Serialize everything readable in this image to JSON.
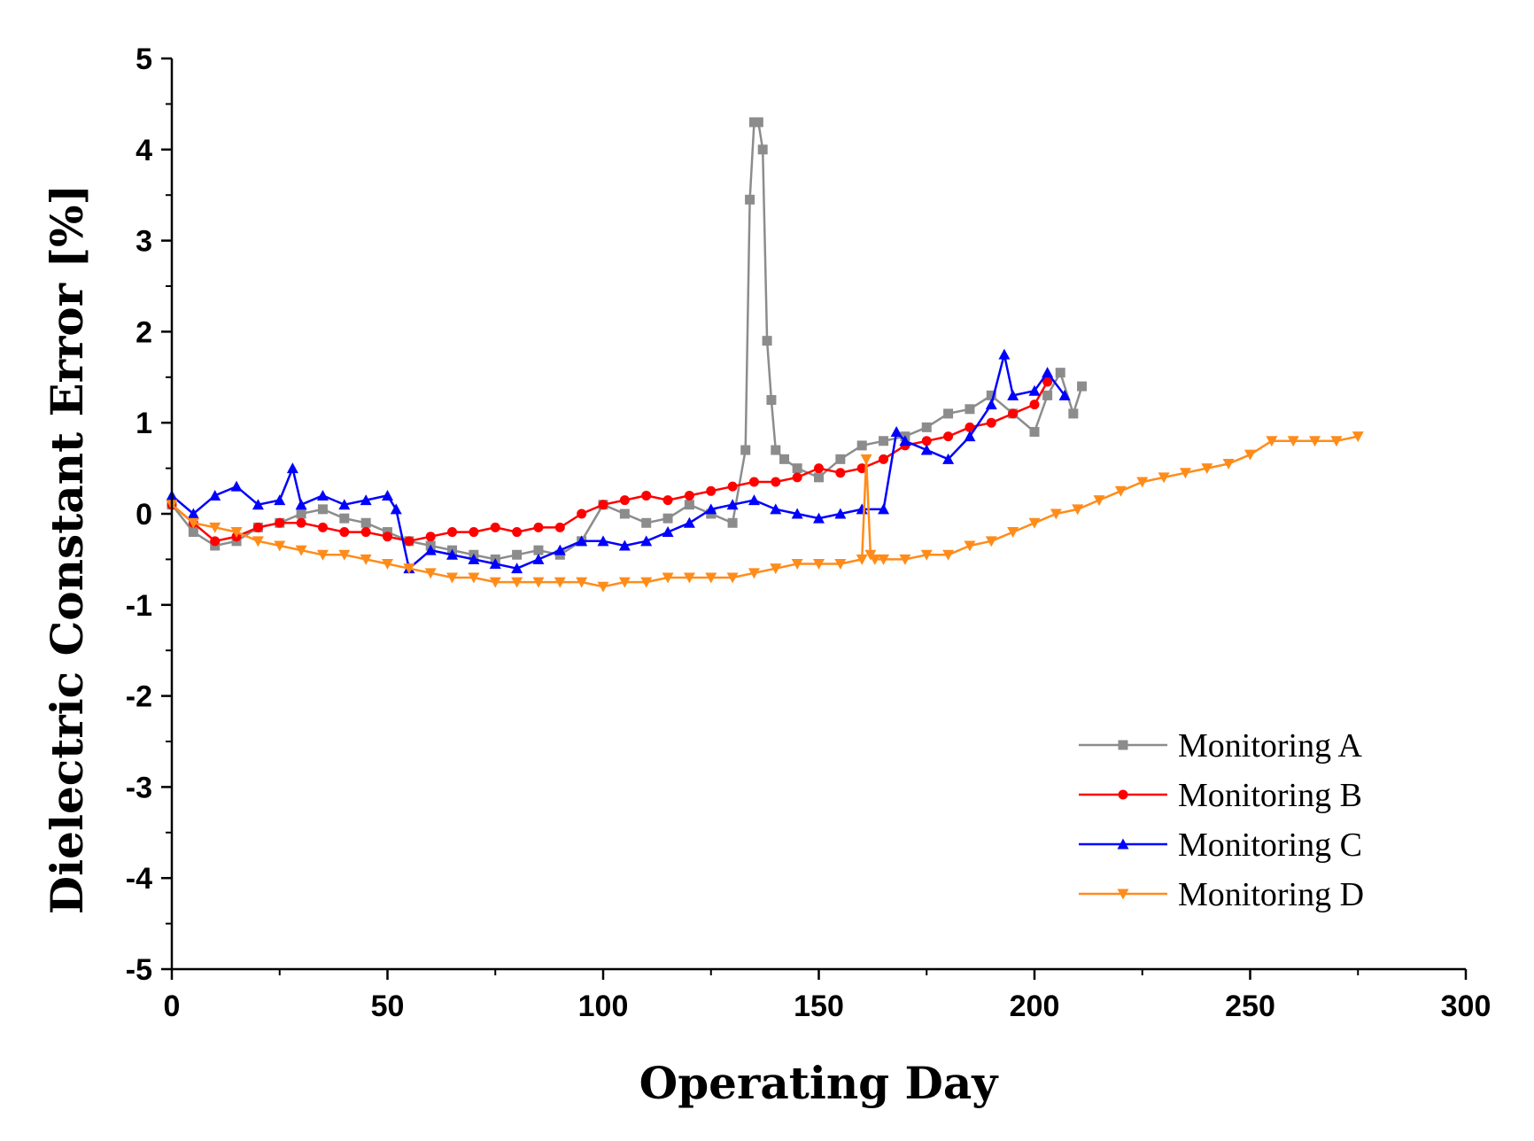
{
  "chart_data": {
    "type": "line",
    "title": "",
    "xlabel": "Operating Day",
    "ylabel": "Dielectric Constant Error [%]",
    "xlim": [
      0,
      300
    ],
    "ylim": [
      -5,
      5
    ],
    "x_ticks": [
      0,
      50,
      100,
      150,
      200,
      250,
      300
    ],
    "x_tick_labels": [
      "0",
      "50",
      "100",
      "150",
      "200",
      "250",
      "300"
    ],
    "y_ticks": [
      -5,
      -4,
      -3,
      -2,
      -1,
      0,
      1,
      2,
      3,
      4,
      5
    ],
    "y_tick_labels": [
      "-5",
      "-4",
      "-3",
      "-2",
      "-1",
      "0",
      "1",
      "2",
      "3",
      "4",
      "5"
    ],
    "grid": false,
    "legend_position": "bottom-right",
    "series": [
      {
        "name": "Monitoring A",
        "color": "#8c8c8c",
        "marker": "square",
        "x": [
          0,
          5,
          10,
          15,
          20,
          25,
          30,
          35,
          40,
          45,
          50,
          55,
          60,
          65,
          70,
          75,
          80,
          85,
          90,
          95,
          100,
          105,
          110,
          115,
          120,
          125,
          130,
          133,
          134,
          135,
          136,
          137,
          138,
          139,
          140,
          142,
          145,
          150,
          155,
          160,
          165,
          170,
          175,
          180,
          185,
          190,
          195,
          200,
          203,
          206,
          209,
          211
        ],
        "y": [
          0.1,
          -0.2,
          -0.35,
          -0.3,
          -0.15,
          -0.1,
          0.0,
          0.05,
          -0.05,
          -0.1,
          -0.2,
          -0.3,
          -0.35,
          -0.4,
          -0.45,
          -0.5,
          -0.45,
          -0.4,
          -0.45,
          -0.3,
          0.1,
          0.0,
          -0.1,
          -0.05,
          0.1,
          0.0,
          -0.1,
          0.7,
          3.45,
          4.3,
          4.3,
          4.0,
          1.9,
          1.25,
          0.7,
          0.6,
          0.5,
          0.4,
          0.6,
          0.75,
          0.8,
          0.85,
          0.95,
          1.1,
          1.15,
          1.3,
          1.1,
          0.9,
          1.3,
          1.55,
          1.1,
          1.4
        ]
      },
      {
        "name": "Monitoring B",
        "color": "#ff0000",
        "marker": "circle",
        "x": [
          0,
          5,
          10,
          15,
          20,
          25,
          30,
          35,
          40,
          45,
          50,
          55,
          60,
          65,
          70,
          75,
          80,
          85,
          90,
          95,
          100,
          105,
          110,
          115,
          120,
          125,
          130,
          135,
          140,
          145,
          150,
          155,
          160,
          165,
          170,
          175,
          180,
          185,
          190,
          195,
          200,
          203
        ],
        "y": [
          0.1,
          -0.1,
          -0.3,
          -0.25,
          -0.15,
          -0.1,
          -0.1,
          -0.15,
          -0.2,
          -0.2,
          -0.25,
          -0.3,
          -0.25,
          -0.2,
          -0.2,
          -0.15,
          -0.2,
          -0.15,
          -0.15,
          0.0,
          0.1,
          0.15,
          0.2,
          0.15,
          0.2,
          0.25,
          0.3,
          0.35,
          0.35,
          0.4,
          0.5,
          0.45,
          0.5,
          0.6,
          0.75,
          0.8,
          0.85,
          0.95,
          1.0,
          1.1,
          1.2,
          1.45
        ]
      },
      {
        "name": "Monitoring C",
        "color": "#0000ff",
        "marker": "triangle-up",
        "x": [
          0,
          5,
          10,
          15,
          20,
          25,
          28,
          30,
          35,
          40,
          45,
          50,
          52,
          55,
          60,
          65,
          70,
          75,
          80,
          85,
          90,
          95,
          100,
          105,
          110,
          115,
          120,
          125,
          130,
          135,
          140,
          145,
          150,
          155,
          160,
          165,
          168,
          170,
          175,
          180,
          185,
          190,
          193,
          195,
          200,
          203,
          207
        ],
        "y": [
          0.2,
          0.0,
          0.2,
          0.3,
          0.1,
          0.15,
          0.5,
          0.1,
          0.2,
          0.1,
          0.15,
          0.2,
          0.05,
          -0.6,
          -0.4,
          -0.45,
          -0.5,
          -0.55,
          -0.6,
          -0.5,
          -0.4,
          -0.3,
          -0.3,
          -0.35,
          -0.3,
          -0.2,
          -0.1,
          0.05,
          0.1,
          0.15,
          0.05,
          0.0,
          -0.05,
          0.0,
          0.05,
          0.05,
          0.9,
          0.8,
          0.7,
          0.6,
          0.85,
          1.2,
          1.75,
          1.3,
          1.35,
          1.55,
          1.3
        ]
      },
      {
        "name": "Monitoring D",
        "color": "#ff8c1a",
        "marker": "triangle-down",
        "x": [
          0,
          5,
          10,
          15,
          20,
          25,
          30,
          35,
          40,
          45,
          50,
          55,
          60,
          65,
          70,
          75,
          80,
          85,
          90,
          95,
          100,
          105,
          110,
          115,
          120,
          125,
          130,
          135,
          140,
          145,
          150,
          155,
          160,
          161,
          162,
          163,
          165,
          170,
          175,
          180,
          185,
          190,
          195,
          200,
          205,
          210,
          215,
          220,
          225,
          230,
          235,
          240,
          245,
          250,
          255,
          260,
          265,
          270,
          275
        ],
        "y": [
          0.1,
          -0.1,
          -0.15,
          -0.2,
          -0.3,
          -0.35,
          -0.4,
          -0.45,
          -0.45,
          -0.5,
          -0.55,
          -0.6,
          -0.65,
          -0.7,
          -0.7,
          -0.75,
          -0.75,
          -0.75,
          -0.75,
          -0.75,
          -0.8,
          -0.75,
          -0.75,
          -0.7,
          -0.7,
          -0.7,
          -0.7,
          -0.65,
          -0.6,
          -0.55,
          -0.55,
          -0.55,
          -0.5,
          0.6,
          -0.45,
          -0.5,
          -0.5,
          -0.5,
          -0.45,
          -0.45,
          -0.35,
          -0.3,
          -0.2,
          -0.1,
          0.0,
          0.05,
          0.15,
          0.25,
          0.35,
          0.4,
          0.45,
          0.5,
          0.55,
          0.65,
          0.8,
          0.8,
          0.8,
          0.8,
          0.85
        ]
      }
    ]
  }
}
